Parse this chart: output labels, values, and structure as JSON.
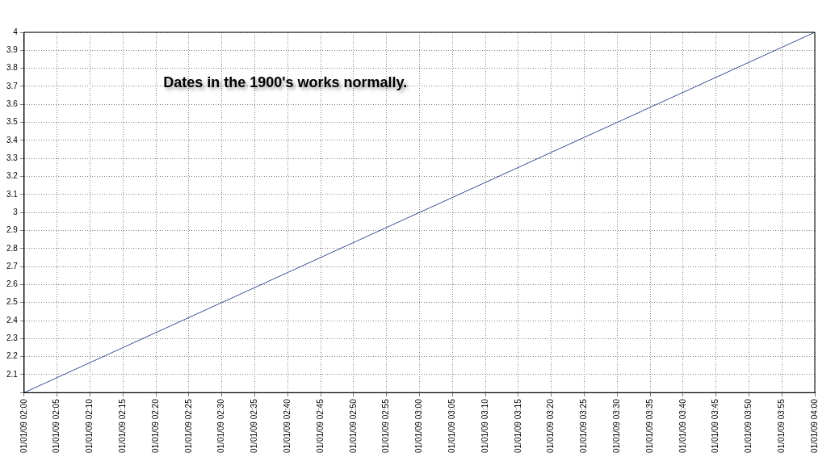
{
  "chart_data": {
    "type": "line",
    "annotations": [
      "Dates in the 1900's works normally."
    ],
    "series": [
      {
        "color": "#3a4f8f",
        "x": [
          "--01-01T02:00",
          "--01-01T04:00"
        ],
        "values": [
          2,
          4
        ]
      }
    ],
    "xlim": [
      "--01-01T02:00",
      "--01-01T04:00"
    ],
    "xticks": [
      {
        "value": "--01-01T02:00",
        "label": "01/01/09 02:00"
      },
      {
        "value": "--01-01T02:05",
        "label": "01/01/09 02:05"
      },
      {
        "value": "--01-01T02:10",
        "label": "01/01/09 02:10"
      },
      {
        "value": "--01-01T02:15",
        "label": "01/01/09 02:15"
      },
      {
        "value": "--01-01T02:20",
        "label": "01/01/09 02:20"
      },
      {
        "value": "--01-01T02:25",
        "label": "01/01/09 02:25"
      },
      {
        "value": "--01-01T02:30",
        "label": "01/01/09 02:30"
      },
      {
        "value": "--01-01T02:35",
        "label": "01/01/09 02:35"
      },
      {
        "value": "--01-01T02:40",
        "label": "01/01/09 02:40"
      },
      {
        "value": "--01-01T02:45",
        "label": "01/01/09 02:45"
      },
      {
        "value": "--01-01T02:50",
        "label": "01/01/09 02:50"
      },
      {
        "value": "--01-01T02:55",
        "label": "01/01/09 02:55"
      },
      {
        "value": "--01-01T03:00",
        "label": "01/01/09 03:00"
      },
      {
        "value": "--01-01T03:05",
        "label": "01/01/09 03:05"
      },
      {
        "value": "--01-01T03:10",
        "label": "01/01/09 03:10"
      },
      {
        "value": "--01-01T03:15",
        "label": "01/01/09 03:15"
      },
      {
        "value": "--01-01T03:20",
        "label": "01/01/09 03:20"
      },
      {
        "value": "--01-01T03:25",
        "label": "01/01/09 03:25"
      },
      {
        "value": "--01-01T03:30",
        "label": "01/01/09 03:30"
      },
      {
        "value": "--01-01T03:35",
        "label": "01/01/09 03:35"
      },
      {
        "value": "--01-01T03:40",
        "label": "01/01/09 03:40"
      },
      {
        "value": "--01-01T03:45",
        "label": "01/01/09 03:45"
      },
      {
        "value": "--01-01T03:50",
        "label": "01/01/09 03:50"
      },
      {
        "value": "--01-01T03:55",
        "label": "01/01/09 03:55"
      },
      {
        "value": "--01-01T04:00",
        "label": "01/01/09 04:00"
      }
    ],
    "ylim": [
      2,
      4
    ],
    "yticks": [
      {
        "value": 2,
        "label": null
      },
      2.1,
      2.2,
      2.3,
      2.4,
      2.5,
      2.6,
      2.7,
      2.8,
      2.9,
      3,
      3.1,
      3.2,
      3.3,
      3.4,
      3.5,
      3.6,
      3.7,
      3.8,
      3.9,
      4
    ],
    "grid": true,
    "marker": "none",
    "line_style": "solid",
    "legend": false
  }
}
